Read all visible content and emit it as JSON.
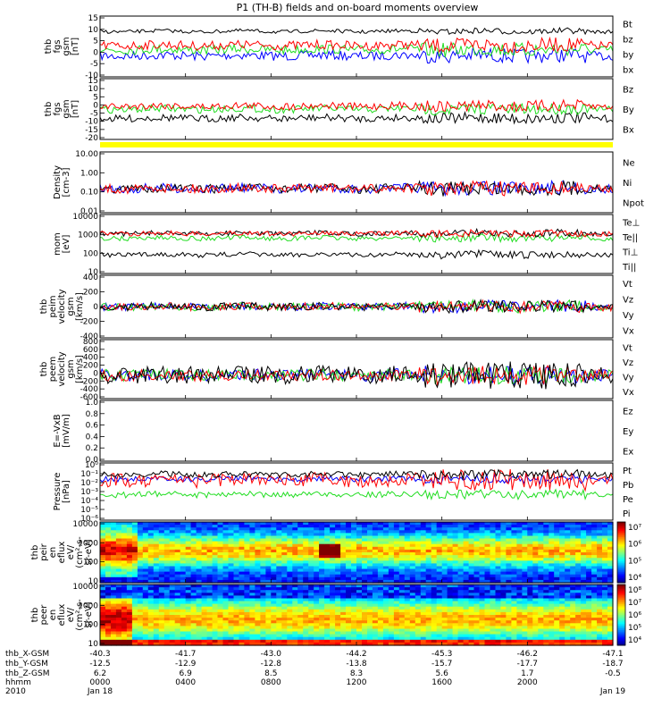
{
  "title": "P1 (TH-B) fields and on-board moments overview",
  "colors": {
    "black": "#000000",
    "red": "#ff0000",
    "green": "#22dd22",
    "blue": "#0000ff",
    "yellow": "#ffff00"
  },
  "chart_data": [
    {
      "type": "line",
      "ylabel": [
        "thb",
        "fgs",
        "gsm",
        "[nT]"
      ],
      "yticks": [
        "15",
        "10",
        "5",
        "0",
        "-5",
        "-10"
      ],
      "legend": [
        {
          "name": "Bt",
          "color": "black"
        },
        {
          "name": "bz",
          "color": "red"
        },
        {
          "name": "by",
          "color": "green"
        },
        {
          "name": "bx",
          "color": "blue"
        }
      ]
    },
    {
      "type": "line",
      "ylabel": [
        "thb",
        "fgs",
        "gsm",
        "[nT]"
      ],
      "yticks": [
        "15",
        "10",
        "5",
        "0",
        "-5",
        "-10",
        "-15",
        "-20"
      ],
      "legend": [
        {
          "name": "Bz",
          "color": "red"
        },
        {
          "name": "By",
          "color": "green"
        },
        {
          "name": "Bx",
          "color": "black"
        }
      ]
    },
    {
      "type": "line",
      "ylabel": [
        "Density",
        "[cm-3]"
      ],
      "yticks": [
        "10.00",
        "1.00",
        "0.10",
        "0.01"
      ],
      "yscale": "log",
      "legend": [
        {
          "name": "Ne",
          "color": "red"
        },
        {
          "name": "Ni",
          "color": "black"
        },
        {
          "name": "Npot",
          "color": "blue"
        }
      ]
    },
    {
      "type": "line",
      "ylabel": [
        "mom",
        "[eV]"
      ],
      "yticks": [
        "10000",
        "1000",
        "100",
        "10"
      ],
      "yscale": "log",
      "legend": [
        {
          "name": "Te⊥",
          "color": "red"
        },
        {
          "name": "Te||",
          "color": "black"
        },
        {
          "name": "Ti⊥",
          "color": "black"
        },
        {
          "name": "Ti||",
          "color": "green"
        }
      ]
    },
    {
      "type": "line",
      "ylabel": [
        "thb",
        "peim",
        "velocity",
        "gsm",
        "[km/s]"
      ],
      "yticks": [
        "400",
        "200",
        "0",
        "-200",
        "-400"
      ],
      "legend": [
        {
          "name": "Vt",
          "color": "black"
        },
        {
          "name": "Vz",
          "color": "red"
        },
        {
          "name": "Vy",
          "color": "green"
        },
        {
          "name": "Vx",
          "color": "blue"
        }
      ]
    },
    {
      "type": "line",
      "ylabel": [
        "thb",
        "peem",
        "velocity",
        "gsm",
        "[km/s]"
      ],
      "yticks": [
        "800",
        "600",
        "400",
        "200",
        "0",
        "-200",
        "-400",
        "-600"
      ],
      "legend": [
        {
          "name": "Vt",
          "color": "black"
        },
        {
          "name": "Vz",
          "color": "red"
        },
        {
          "name": "Vy",
          "color": "green"
        },
        {
          "name": "Vx",
          "color": "blue"
        }
      ]
    },
    {
      "type": "line",
      "ylabel": [
        "E=-VxB",
        "[mV/m]"
      ],
      "yticks": [
        "1.0",
        "0.8",
        "0.6",
        "0.4",
        "0.2",
        "0.0"
      ],
      "legend": [
        {
          "name": "Ez",
          "color": "red"
        },
        {
          "name": "Ey",
          "color": "green"
        },
        {
          "name": "Ex",
          "color": "blue"
        }
      ]
    },
    {
      "type": "line",
      "ylabel": [
        "Pressure",
        "[nPa]"
      ],
      "yticks": [
        "10⁰",
        "10⁻¹",
        "10⁻²",
        "10⁻³",
        "10⁻⁴",
        "10⁻⁵",
        "10⁻⁶"
      ],
      "yscale": "log",
      "legend": [
        {
          "name": "Pt",
          "color": "black"
        },
        {
          "name": "Pb",
          "color": "red"
        },
        {
          "name": "Pe",
          "color": "green"
        },
        {
          "name": "Pi",
          "color": "blue"
        }
      ]
    },
    {
      "type": "heatmap",
      "ylabel": [
        "thb",
        "peir",
        "en",
        "eflux",
        "eV/",
        "(cm²-s-",
        "sr-eV)"
      ],
      "yticks": [
        "10000",
        "1000",
        "100",
        "10"
      ],
      "yscale": "log",
      "colorbar": [
        "10⁷",
        "10⁶",
        "10⁵",
        "10⁴"
      ]
    },
    {
      "type": "heatmap",
      "ylabel": [
        "thb",
        "peer",
        "en",
        "eflux",
        "eV/",
        "(cm²-s-",
        "sr-eV)"
      ],
      "yticks": [
        "10000",
        "1000",
        "100",
        "10"
      ],
      "yscale": "log",
      "colorbar": [
        "10⁸",
        "10⁷",
        "10⁶",
        "10⁵",
        "10⁴"
      ]
    }
  ],
  "xaxis": {
    "rows": [
      {
        "label": "thb_X-GSM",
        "values": [
          "-40.3",
          "-41.7",
          "-43.0",
          "-44.2",
          "-45.3",
          "-46.2",
          "-47.1"
        ]
      },
      {
        "label": "thb_Y-GSM",
        "values": [
          "-12.5",
          "-12.9",
          "-12.8",
          "-13.8",
          "-15.7",
          "-17.7",
          "-18.7"
        ]
      },
      {
        "label": "thb_Z-GSM",
        "values": [
          "6.2",
          "6.9",
          "8.5",
          "8.3",
          "5.6",
          "1.7",
          "-0.5"
        ]
      },
      {
        "label": "hhmm",
        "values": [
          "0000",
          "0400",
          "0800",
          "1200",
          "1600",
          "2000",
          ""
        ]
      },
      {
        "label": "2010",
        "values": [
          "Jan 18",
          "",
          "",
          "",
          "",
          "",
          "Jan 19"
        ]
      }
    ]
  }
}
